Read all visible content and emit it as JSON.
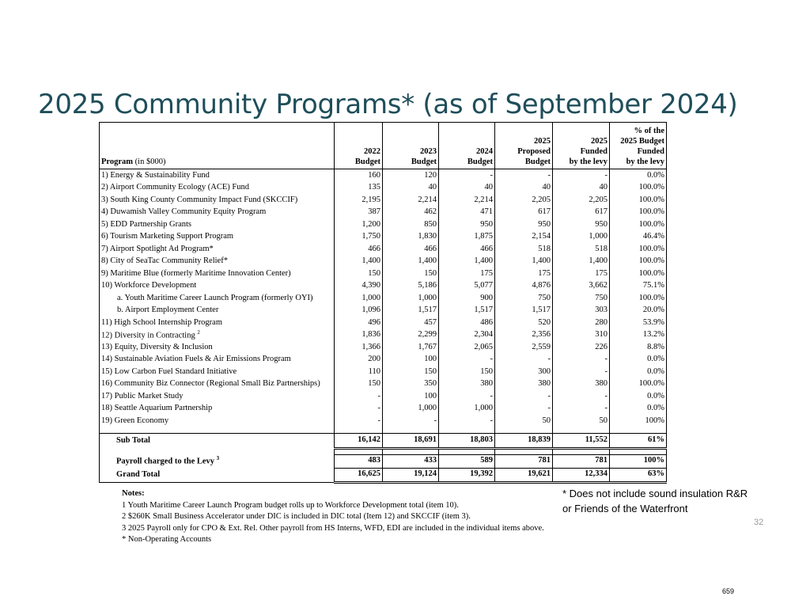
{
  "title": "2025 Community Programs* (as of September 2024)",
  "table": {
    "headers": {
      "program": "Program",
      "program_unit": "(in $000)",
      "y2022": [
        "2022",
        "Budget"
      ],
      "y2023": [
        "2023",
        "Budget"
      ],
      "y2024": [
        "2024",
        "Budget"
      ],
      "proposed": [
        "2025",
        "Proposed",
        "Budget"
      ],
      "funded": [
        "2025",
        "Funded",
        "by the levy"
      ],
      "pct": [
        "% of the",
        "2025 Budget",
        "Funded",
        "by the levy"
      ]
    },
    "rows": [
      {
        "label": "1) Energy & Sustainability Fund",
        "sup": "",
        "sub": false,
        "v": [
          "160",
          "120",
          "-",
          "-",
          "-",
          "0.0%"
        ]
      },
      {
        "label": "2) Airport Community Ecology (ACE) Fund",
        "sup": "",
        "sub": false,
        "v": [
          "135",
          "40",
          "40",
          "40",
          "40",
          "100.0%"
        ]
      },
      {
        "label": "3) South King County Community Impact Fund (SKCCIF)",
        "sup": "",
        "sub": false,
        "v": [
          "2,195",
          "2,214",
          "2,214",
          "2,205",
          "2,205",
          "100.0%"
        ]
      },
      {
        "label": "4) Duwamish Valley Community Equity Program",
        "sup": "",
        "sub": false,
        "v": [
          "387",
          "462",
          "471",
          "617",
          "617",
          "100.0%"
        ]
      },
      {
        "label": "5) EDD Partnership Grants",
        "sup": "",
        "sub": false,
        "v": [
          "1,200",
          "850",
          "950",
          "950",
          "950",
          "100.0%"
        ]
      },
      {
        "label": "6) Tourism Marketing Support Program",
        "sup": "",
        "sub": false,
        "v": [
          "1,750",
          "1,830",
          "1,875",
          "2,154",
          "1,000",
          "46.4%"
        ]
      },
      {
        "label": "7) Airport Spotlight Ad Program*",
        "sup": "",
        "sub": false,
        "v": [
          "466",
          "466",
          "466",
          "518",
          "518",
          "100.0%"
        ]
      },
      {
        "label": "8) City of SeaTac Community Relief*",
        "sup": "",
        "sub": false,
        "v": [
          "1,400",
          "1,400",
          "1,400",
          "1,400",
          "1,400",
          "100.0%"
        ]
      },
      {
        "label": "9) Maritime Blue (formerly Maritime Innovation Center)",
        "sup": "",
        "sub": false,
        "v": [
          "150",
          "150",
          "175",
          "175",
          "175",
          "100.0%"
        ]
      },
      {
        "label": "10) Workforce Development",
        "sup": "",
        "sub": false,
        "v": [
          "4,390",
          "5,186",
          "5,077",
          "4,876",
          "3,662",
          "75.1%"
        ]
      },
      {
        "label": "a. Youth Maritime Career Launch Program (formerly OYI)",
        "sup": "",
        "sub": true,
        "v": [
          "1,000",
          "1,000",
          "900",
          "750",
          "750",
          "100.0%"
        ]
      },
      {
        "label": "b. Airport Employment Center",
        "sup": "",
        "sub": true,
        "v": [
          "1,096",
          "1,517",
          "1,517",
          "1,517",
          "303",
          "20.0%"
        ]
      },
      {
        "label": "11) High School Internship Program",
        "sup": "",
        "sub": false,
        "v": [
          "496",
          "457",
          "486",
          "520",
          "280",
          "53.9%"
        ]
      },
      {
        "label": "12) Diversity in Contracting",
        "sup": "2",
        "sub": false,
        "v": [
          "1,836",
          "2,299",
          "2,304",
          "2,356",
          "310",
          "13.2%"
        ]
      },
      {
        "label": "13) Equity, Diversity & Inclusion",
        "sup": "",
        "sub": false,
        "v": [
          "1,366",
          "1,767",
          "2,065",
          "2,559",
          "226",
          "8.8%"
        ]
      },
      {
        "label": "14) Sustainable Aviation Fuels & Air Emissions Program",
        "sup": "",
        "sub": false,
        "v": [
          "200",
          "100",
          "-",
          "-",
          "-",
          "0.0%"
        ]
      },
      {
        "label": "15) Low Carbon Fuel Standard Initiative",
        "sup": "",
        "sub": false,
        "v": [
          "110",
          "150",
          "150",
          "300",
          "-",
          "0.0%"
        ]
      },
      {
        "label": "16) Community Biz Connector (Regional Small Biz Partnerships)",
        "sup": "",
        "sub": false,
        "v": [
          "150",
          "350",
          "380",
          "380",
          "380",
          "100.0%"
        ]
      },
      {
        "label": "17) Public Market Study",
        "sup": "",
        "sub": false,
        "v": [
          "-",
          "100",
          "-",
          "-",
          "-",
          "0.0%"
        ]
      },
      {
        "label": "18) Seattle Aquarium Partnership",
        "sup": "",
        "sub": false,
        "v": [
          "-",
          "1,000",
          "1,000",
          "-",
          "-",
          "0.0%"
        ]
      },
      {
        "label": "19) Green Economy",
        "sup": "",
        "sub": false,
        "v": [
          "-",
          "-",
          "-",
          "50",
          "50",
          "100%"
        ]
      }
    ],
    "subtotal": {
      "label": "Sub Total",
      "v": [
        "16,142",
        "18,691",
        "18,803",
        "18,839",
        "11,552",
        "61%"
      ]
    },
    "payroll": {
      "label": "Payroll charged to the Levy",
      "sup": "3",
      "v": [
        "483",
        "433",
        "589",
        "781",
        "781",
        "100%"
      ]
    },
    "grand_total": {
      "label": "Grand Total",
      "v": [
        "16,625",
        "19,124",
        "19,392",
        "19,621",
        "12,334",
        "63%"
      ]
    }
  },
  "notes": {
    "heading": "Notes:",
    "lines": [
      "1 Youth Maritime Career Launch Program budget rolls up to Workforce Development total (item 10).",
      "2 $260K Small Business Accelerator under DIC is included in DIC total (Item 12) and SKCCIF (item 3).",
      "3 2025 Payroll only for CPO & Ext. Rel. Other payroll from HS Interns, WFD, EDI are included in the individual items above.",
      "* Non-Operating Accounts"
    ]
  },
  "side_note": [
    "* Does not include sound insulation R&R",
    "or Friends of the Waterfront"
  ],
  "slide_number": "32",
  "document_page": "659"
}
